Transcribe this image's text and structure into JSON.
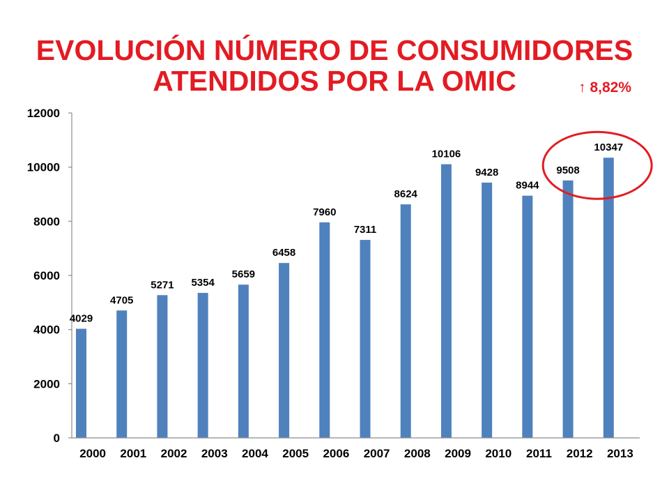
{
  "colors": {
    "title": "#e31b23",
    "annotation": "#e31b23",
    "bar": "#4f81bd",
    "highlight_circle": "#e31b23",
    "axis": "#8c8c8c"
  },
  "chart_data": {
    "type": "bar",
    "title": [
      "EVOLUCIÓN NÚMERO DE CONSUMIDORES",
      "ATENDIDOS POR LA OMIC"
    ],
    "annotations": [
      {
        "text": "↑ 8,82%"
      }
    ],
    "categories": [
      "2000",
      "2001",
      "2002",
      "2003",
      "2004",
      "2005",
      "2006",
      "2007",
      "2008",
      "2009",
      "2010",
      "2011",
      "2012",
      "2013"
    ],
    "values": [
      4029,
      4705,
      5271,
      5354,
      5659,
      6458,
      7960,
      7311,
      8624,
      10106,
      9428,
      8944,
      9508,
      10347
    ],
    "data_labels": true,
    "ylim": [
      0,
      12000
    ],
    "yticks": [
      0,
      2000,
      4000,
      6000,
      8000,
      10000,
      12000
    ],
    "grid": false,
    "legend": false,
    "highlighted_categories": [
      12,
      13
    ]
  }
}
